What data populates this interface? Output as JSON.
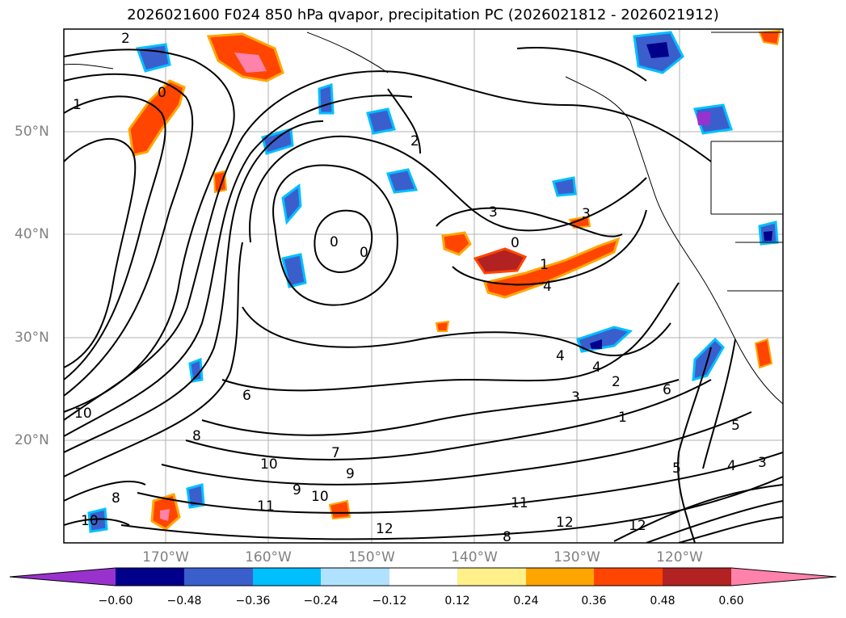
{
  "title": "2026021600 F024 850 hPa qvapor, precipitation PC (2026021812 - 2026021912)",
  "map": {
    "lat_labels": [
      "50°N",
      "40°N",
      "30°N",
      "20°N"
    ],
    "lon_labels": [
      "170°W",
      "160°W",
      "150°W",
      "140°W",
      "130°W",
      "120°W"
    ],
    "contour_labels": [
      "2",
      "1",
      "0",
      "0",
      "0",
      "2",
      "3",
      "3",
      "0",
      "1",
      "4",
      "4",
      "4",
      "3",
      "2",
      "6",
      "7",
      "8",
      "9",
      "9",
      "10",
      "10",
      "10",
      "11",
      "11",
      "12",
      "12",
      "12",
      "8",
      "5",
      "4",
      "3",
      "5",
      "1",
      "6",
      "10",
      "8"
    ]
  },
  "colorbar": {
    "ticks": [
      "−0.60",
      "−0.48",
      "−0.36",
      "−0.24",
      "−0.12",
      "0.12",
      "0.24",
      "0.36",
      "0.48",
      "0.60"
    ],
    "colors": [
      "#9932cc",
      "#00008b",
      "#3a5fcd",
      "#00bfff",
      "#b0e2ff",
      "#ffffff",
      "#fff08a",
      "#ffa500",
      "#ff4500",
      "#b22222",
      "#ff82ab"
    ]
  }
}
